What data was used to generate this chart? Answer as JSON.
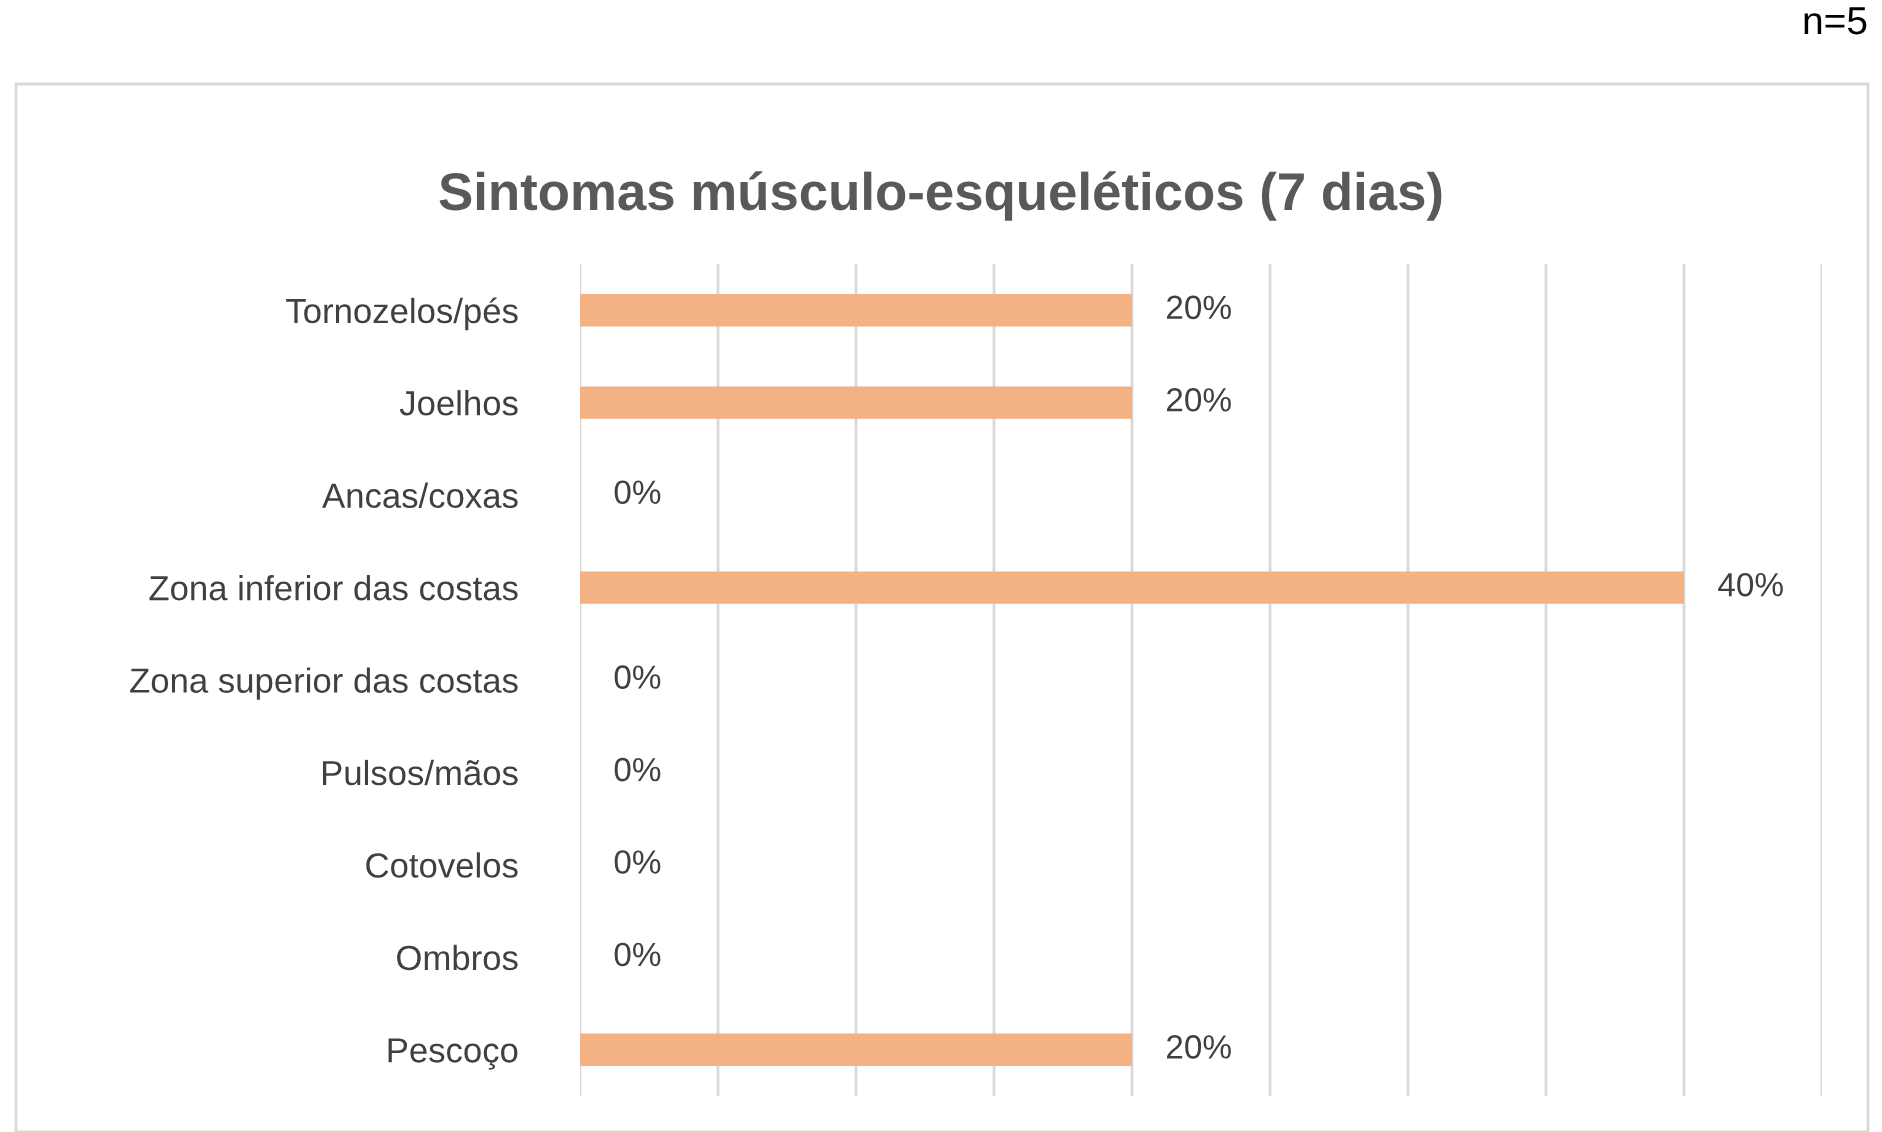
{
  "chart_data": {
    "type": "bar",
    "orientation": "horizontal",
    "title": "Sintomas músculo-esqueléticos (7 dias)",
    "categories": [
      "Tornozelos/pés",
      "Joelhos",
      "Ancas/coxas",
      "Zona inferior das costas",
      "Zona superior das costas",
      "Pulsos/mãos",
      "Cotovelos",
      "Ombros",
      "Pescoço"
    ],
    "values": [
      20,
      20,
      0,
      40,
      0,
      0,
      0,
      0,
      20
    ],
    "value_labels": [
      "20%",
      "20%",
      "0%",
      "40%",
      "0%",
      "0%",
      "0%",
      "0%",
      "20%"
    ],
    "color": "#f4b183",
    "xlim": [
      0,
      45
    ],
    "xticks": [
      {
        "value": 0,
        "label": null
      },
      {
        "value": 5,
        "label": null
      },
      {
        "value": 10,
        "label": null
      },
      {
        "value": 15,
        "label": null
      },
      {
        "value": 20,
        "label": null
      },
      {
        "value": 25,
        "label": null
      },
      {
        "value": 30,
        "label": null
      },
      {
        "value": 35,
        "label": null
      },
      {
        "value": 40,
        "label": null
      },
      {
        "value": 45,
        "label": null
      }
    ],
    "grid": "x",
    "tick_labels": "y",
    "legend": false,
    "annotations": [
      "n=5"
    ]
  }
}
